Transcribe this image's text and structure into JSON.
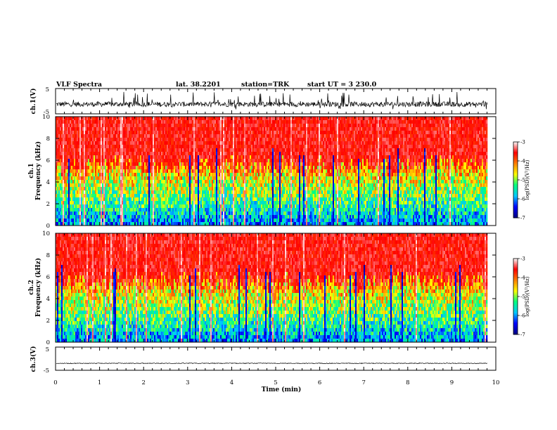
{
  "header": {
    "title": "VLF Spectra",
    "lat": "lat. 38.2201",
    "station": "station=TRK",
    "start": "start UT = 3 230.0"
  },
  "chart_data": [
    {
      "type": "line",
      "name": "ch1-waveform",
      "ylabel": "ch.1(V)",
      "ylim": [
        -5,
        5
      ],
      "yticks": [
        "5",
        "-5"
      ],
      "baseline": -1.2,
      "amplitude": 1.0,
      "spike_amplitude": 3.5
    },
    {
      "type": "heatmap",
      "name": "ch1-spectrogram",
      "ylabel": "ch.1 Frequency (kHz)",
      "ylim": [
        0,
        10
      ],
      "yticks": [
        "0",
        "2",
        "4",
        "6",
        "8",
        "10"
      ],
      "colorbar": {
        "label": "log(PSD)(V²/Hz)",
        "ticks": [
          "-3",
          "-4",
          "-5",
          "-6",
          "-7"
        ],
        "range": [
          -7,
          -3
        ]
      }
    },
    {
      "type": "heatmap",
      "name": "ch2-spectrogram",
      "ylabel": "ch.2 Frequency (kHz)",
      "ylim": [
        0,
        10
      ],
      "yticks": [
        "0",
        "2",
        "4",
        "6",
        "8",
        "10"
      ],
      "colorbar": {
        "label": "log(PSD)(V²/Hz)",
        "ticks": [
          "-3",
          "-4",
          "-5",
          "-6",
          "-7"
        ],
        "range": [
          -7,
          -3
        ]
      }
    },
    {
      "type": "line",
      "name": "ch3-waveform",
      "ylabel": "ch.3(V)",
      "ylim": [
        -5,
        5
      ],
      "yticks": [
        "5",
        "-5"
      ],
      "baseline": -2.0,
      "amplitude": 0.15,
      "spike_amplitude": 0.15
    }
  ],
  "xaxis": {
    "label": "Time (min)",
    "range": [
      0,
      10
    ],
    "ticks": [
      "0",
      "1",
      "2",
      "3",
      "4",
      "5",
      "6",
      "7",
      "8",
      "9",
      "10"
    ],
    "data_end": 9.82
  },
  "colors": {
    "waveform": "#000000",
    "colormap": [
      "#000080",
      "#0000ff",
      "#00c8ff",
      "#00ff80",
      "#ffff00",
      "#ff8000",
      "#ff0000",
      "#ffffff"
    ]
  }
}
